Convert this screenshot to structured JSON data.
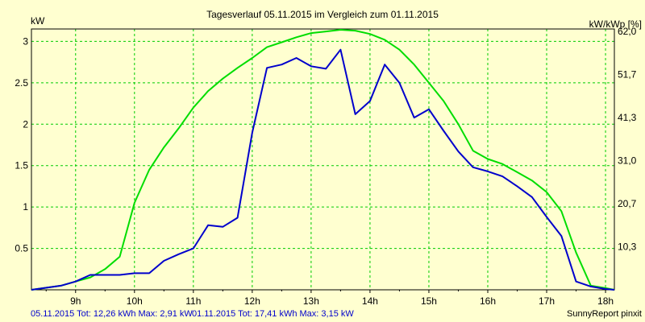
{
  "chart_data": {
    "type": "line",
    "title": "Tagesverlauf 05.11.2015 im Vergleich zum 01.11.2015",
    "ylabel_left": "kW",
    "ylabel_right": "kW/kWp [%]",
    "xlim": [
      8.25,
      18.15
    ],
    "ylim": [
      0,
      3.15
    ],
    "y_ticks": [
      {
        "value": 0.5,
        "label": "0.5"
      },
      {
        "value": 1,
        "label": "1"
      },
      {
        "value": 1.5,
        "label": "1.5"
      },
      {
        "value": 2,
        "label": "2"
      },
      {
        "value": 2.5,
        "label": "2.5"
      },
      {
        "value": 3,
        "label": "3"
      }
    ],
    "y_right_ticks": [
      {
        "value": 0.52,
        "label": "10,3"
      },
      {
        "value": 1.04,
        "label": "20,7"
      },
      {
        "value": 1.56,
        "label": "31,0"
      },
      {
        "value": 2.08,
        "label": "41,3"
      },
      {
        "value": 2.6,
        "label": "51,7"
      },
      {
        "value": 3.12,
        "label": "62,0"
      }
    ],
    "x_ticks": [
      {
        "value": 9,
        "label": "9h"
      },
      {
        "value": 10,
        "label": "10h"
      },
      {
        "value": 11,
        "label": "11h"
      },
      {
        "value": 12,
        "label": "12h"
      },
      {
        "value": 13,
        "label": "13h"
      },
      {
        "value": 14,
        "label": "14h"
      },
      {
        "value": 15,
        "label": "15h"
      },
      {
        "value": 16,
        "label": "16h"
      },
      {
        "value": 17,
        "label": "17h"
      },
      {
        "value": 18,
        "label": "18h"
      }
    ],
    "grid": true,
    "series": [
      {
        "name": "05.11.2015",
        "color": "#0000cc",
        "points": [
          [
            8.25,
            0
          ],
          [
            8.75,
            0.05
          ],
          [
            9.0,
            0.1
          ],
          [
            9.25,
            0.18
          ],
          [
            9.5,
            0.18
          ],
          [
            9.75,
            0.18
          ],
          [
            10.0,
            0.2
          ],
          [
            10.25,
            0.2
          ],
          [
            10.5,
            0.35
          ],
          [
            10.75,
            0.43
          ],
          [
            11.0,
            0.5
          ],
          [
            11.25,
            0.78
          ],
          [
            11.5,
            0.76
          ],
          [
            11.75,
            0.87
          ],
          [
            12.0,
            1.9
          ],
          [
            12.25,
            2.68
          ],
          [
            12.5,
            2.72
          ],
          [
            12.75,
            2.8
          ],
          [
            13.0,
            2.7
          ],
          [
            13.25,
            2.67
          ],
          [
            13.5,
            2.9
          ],
          [
            13.75,
            2.12
          ],
          [
            14.0,
            2.28
          ],
          [
            14.25,
            2.72
          ],
          [
            14.5,
            2.5
          ],
          [
            14.75,
            2.08
          ],
          [
            15.0,
            2.18
          ],
          [
            15.25,
            1.92
          ],
          [
            15.5,
            1.67
          ],
          [
            15.75,
            1.48
          ],
          [
            16.0,
            1.43
          ],
          [
            16.25,
            1.37
          ],
          [
            16.5,
            1.25
          ],
          [
            16.75,
            1.12
          ],
          [
            17.0,
            0.88
          ],
          [
            17.25,
            0.65
          ],
          [
            17.5,
            0.1
          ],
          [
            17.75,
            0.04
          ],
          [
            18.0,
            0.01
          ],
          [
            18.15,
            0
          ]
        ]
      },
      {
        "name": "01.11.2015",
        "color": "#00dd00",
        "points": [
          [
            8.25,
            0
          ],
          [
            8.75,
            0.05
          ],
          [
            9.0,
            0.1
          ],
          [
            9.25,
            0.15
          ],
          [
            9.5,
            0.25
          ],
          [
            9.75,
            0.4
          ],
          [
            10.0,
            1.05
          ],
          [
            10.25,
            1.45
          ],
          [
            10.5,
            1.72
          ],
          [
            10.75,
            1.95
          ],
          [
            11.0,
            2.2
          ],
          [
            11.25,
            2.4
          ],
          [
            11.5,
            2.55
          ],
          [
            11.75,
            2.68
          ],
          [
            12.0,
            2.8
          ],
          [
            12.25,
            2.93
          ],
          [
            12.5,
            2.99
          ],
          [
            12.75,
            3.05
          ],
          [
            13.0,
            3.1
          ],
          [
            13.25,
            3.12
          ],
          [
            13.5,
            3.14
          ],
          [
            13.75,
            3.13
          ],
          [
            14.0,
            3.09
          ],
          [
            14.25,
            3.02
          ],
          [
            14.5,
            2.9
          ],
          [
            14.75,
            2.72
          ],
          [
            15.0,
            2.5
          ],
          [
            15.25,
            2.28
          ],
          [
            15.5,
            2.0
          ],
          [
            15.75,
            1.68
          ],
          [
            16.0,
            1.58
          ],
          [
            16.25,
            1.52
          ],
          [
            16.5,
            1.42
          ],
          [
            16.75,
            1.32
          ],
          [
            17.0,
            1.18
          ],
          [
            17.25,
            0.95
          ],
          [
            17.5,
            0.45
          ],
          [
            17.75,
            0.05
          ],
          [
            18.0,
            0.02
          ],
          [
            18.15,
            0
          ]
        ]
      }
    ]
  },
  "footer": {
    "series1_label": "05.11.2015 Tot: 12,26 kWh Max: 2,91 kW",
    "series2_label": "01.11.2015 Tot: 17,41 kWh Max: 3,15 kW",
    "brand": "SunnyReport pinxit"
  },
  "colors": {
    "background": "#ffffd0",
    "grid": "#00cc00",
    "series1": "#0000cc",
    "series2": "#00dd00",
    "footer_text": "#0000cc"
  }
}
